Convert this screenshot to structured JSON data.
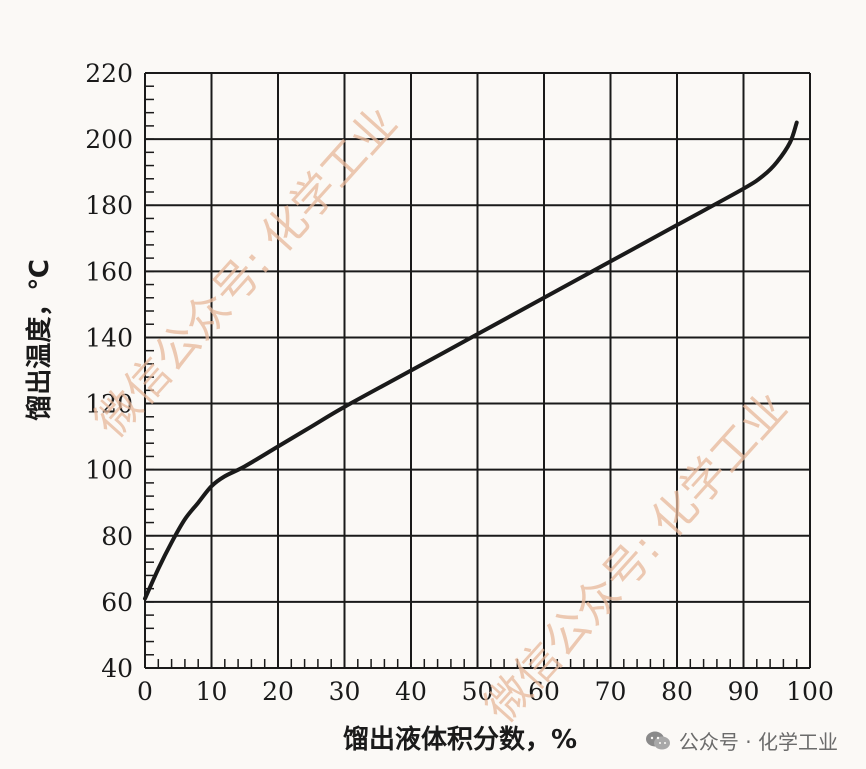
{
  "chart_data": {
    "type": "line",
    "xlabel": "馏出液体积分数，%",
    "ylabel": "馏出温度，℃",
    "xlim": [
      0,
      100
    ],
    "ylim": [
      40,
      220
    ],
    "x_ticks": [
      0,
      10,
      20,
      30,
      40,
      50,
      60,
      70,
      80,
      90,
      100
    ],
    "y_ticks": [
      40,
      60,
      80,
      100,
      120,
      140,
      160,
      180,
      200,
      220
    ],
    "grid": true,
    "series": [
      {
        "color": "#1a1a1a",
        "x": [
          0,
          2,
          4,
          6,
          8,
          10,
          12,
          15,
          20,
          25,
          30,
          40,
          50,
          60,
          70,
          80,
          90,
          93,
          95,
          97,
          98
        ],
        "y": [
          61,
          70,
          78,
          85,
          90,
          95,
          98,
          101,
          107,
          113,
          119,
          130,
          141,
          152,
          163,
          174,
          185,
          189,
          193,
          199,
          205
        ]
      }
    ]
  },
  "watermarks": [
    "微信公众号: 化学工业",
    "微信公众号: 化学工业"
  ],
  "footer": {
    "logo_icon": "wechat-icon",
    "text": "公众号 · 化学工业"
  }
}
